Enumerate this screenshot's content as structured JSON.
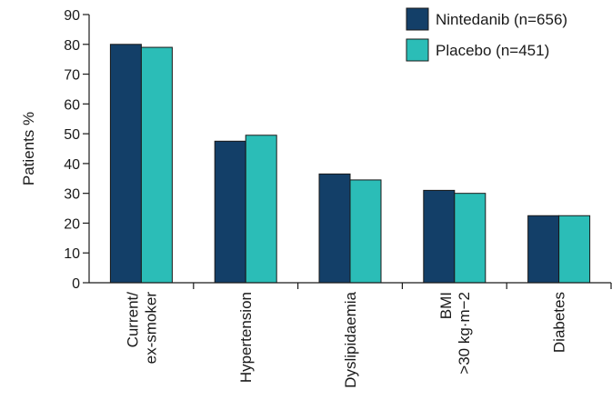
{
  "chart_data": {
    "type": "bar",
    "title": "",
    "xlabel": "",
    "ylabel": "Patients %",
    "ylim": [
      0,
      90
    ],
    "yticks": [
      0,
      10,
      20,
      30,
      40,
      50,
      60,
      70,
      80,
      90
    ],
    "grid": false,
    "legend_position": "top-right",
    "categories": [
      {
        "lines": [
          "Current/",
          "ex-smoker"
        ]
      },
      {
        "lines": [
          "Hypertension"
        ]
      },
      {
        "lines": [
          "Dyslipidaemia"
        ]
      },
      {
        "lines": [
          "BMI",
          ">30 kg·m−2"
        ]
      },
      {
        "lines": [
          "Diabetes"
        ]
      }
    ],
    "series": [
      {
        "name": "Nintedanib (n=656)",
        "color": "#133f68",
        "values": [
          80,
          47.5,
          36.5,
          31,
          22.5
        ]
      },
      {
        "name": "Placebo (n=451)",
        "color": "#2bbdb7",
        "values": [
          79,
          49.5,
          34.5,
          30,
          22.5
        ]
      }
    ]
  }
}
